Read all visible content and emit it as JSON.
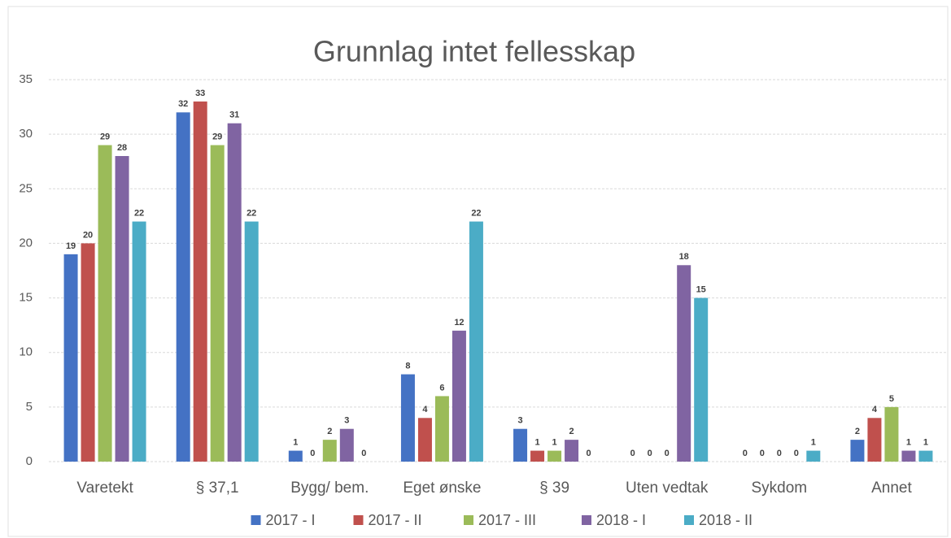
{
  "chart_data": {
    "type": "bar",
    "title": "Grunnlag intet fellesskap",
    "categories": [
      "Varetekt",
      "§ 37,1",
      "Bygg/ bem.",
      "Eget ønske",
      "§ 39",
      "Uten vedtak",
      "Sykdom",
      "Annet"
    ],
    "series": [
      {
        "name": "2017 - I",
        "color": "#4472c4",
        "values": [
          19,
          32,
          1,
          8,
          3,
          0,
          0,
          2
        ]
      },
      {
        "name": "2017 - II",
        "color": "#c0504d",
        "values": [
          20,
          33,
          0,
          4,
          1,
          0,
          0,
          4
        ]
      },
      {
        "name": "2017 - III",
        "color": "#9bbb59",
        "values": [
          29,
          29,
          2,
          6,
          1,
          0,
          0,
          5
        ]
      },
      {
        "name": "2018 - I",
        "color": "#8064a2",
        "values": [
          28,
          31,
          3,
          12,
          2,
          18,
          0,
          1
        ]
      },
      {
        "name": "2018 - II",
        "color": "#4bacc6",
        "values": [
          22,
          22,
          0,
          22,
          0,
          15,
          1,
          1
        ]
      }
    ],
    "ylim": [
      0,
      35
    ],
    "yticks": [
      0,
      5,
      10,
      15,
      20,
      25,
      30,
      35
    ],
    "grid": true,
    "legend": "bottom"
  }
}
